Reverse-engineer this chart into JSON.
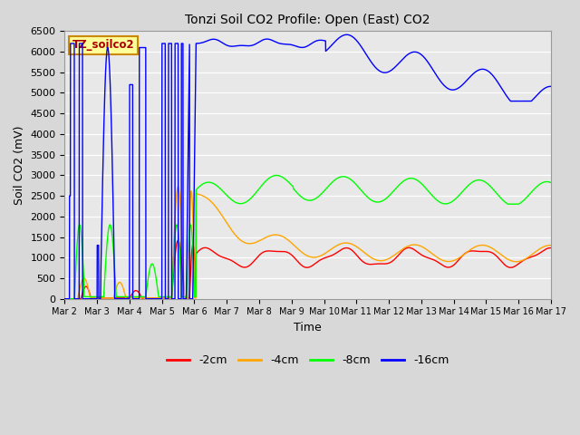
{
  "title": "Tonzi Soil CO2 Profile: Open (East) CO2",
  "ylabel": "Soil CO2 (mV)",
  "xlabel": "Time",
  "ylim": [
    0,
    6500
  ],
  "plot_bg": "#e8e8e8",
  "fig_bg": "#d8d8d8",
  "label_box_text": "TZ_soilco2",
  "label_box_color": "#ffff99",
  "label_box_edge": "#cc8800",
  "colors": {
    "2cm": "#ff0000",
    "4cm": "#ffa500",
    "8cm": "#00ff00",
    "16cm": "#0000ff"
  },
  "legend_labels": [
    "-2cm",
    "-4cm",
    "-8cm",
    "-16cm"
  ],
  "x_tick_labels": [
    "Mar 2",
    "Mar 3",
    "Mar 4",
    "Mar 5",
    "Mar 6",
    "Mar 7",
    "Mar 8",
    "Mar 9",
    "Mar 10",
    "Mar 11",
    "Mar 12",
    "Mar 13",
    "Mar 14",
    "Mar 15",
    "Mar 16",
    "Mar 17"
  ],
  "x_tick_positions": [
    0,
    1,
    2,
    3,
    4,
    5,
    6,
    7,
    8,
    9,
    10,
    11,
    12,
    13,
    14,
    15
  ]
}
